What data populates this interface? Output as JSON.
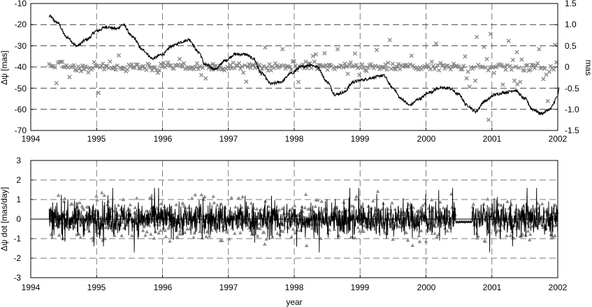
{
  "chart_data": [
    {
      "type": "line",
      "ylabel": "Δψ [mas]",
      "ylabel_right": "mas",
      "xlabel": "",
      "xlim": [
        1994,
        2002
      ],
      "ylim": [
        -70,
        -10
      ],
      "ylim_right": [
        -1.5,
        1.5
      ],
      "x_ticks": [
        "1994",
        "1995",
        "1996",
        "1997",
        "1998",
        "1999",
        "2000",
        "2001",
        "2002"
      ],
      "y_ticks": [
        "-10",
        "-20",
        "-30",
        "-40",
        "-50",
        "-60",
        "-70"
      ],
      "y_ticks_right": [
        "1.5",
        "1.0",
        "0.5",
        "0",
        "-0.5",
        "-1.0",
        "-1.5"
      ],
      "grid": "dashed",
      "series": [
        {
          "axis": "left",
          "style": "black-line",
          "color": "#000000",
          "points": [
            [
              1994.28,
              -16
            ],
            [
              1994.4,
              -19
            ],
            [
              1994.55,
              -26
            ],
            [
              1994.7,
              -30
            ],
            [
              1994.85,
              -27
            ],
            [
              1995.0,
              -23
            ],
            [
              1995.15,
              -21
            ],
            [
              1995.3,
              -22
            ],
            [
              1995.4,
              -20
            ],
            [
              1995.55,
              -26
            ],
            [
              1995.7,
              -32
            ],
            [
              1995.85,
              -36
            ],
            [
              1996.0,
              -34
            ],
            [
              1996.15,
              -30
            ],
            [
              1996.3,
              -28
            ],
            [
              1996.4,
              -27
            ],
            [
              1996.55,
              -33
            ],
            [
              1996.65,
              -39
            ],
            [
              1996.8,
              -41
            ],
            [
              1996.95,
              -37
            ],
            [
              1997.1,
              -34
            ],
            [
              1997.25,
              -34
            ],
            [
              1997.38,
              -36
            ],
            [
              1997.5,
              -43
            ],
            [
              1997.65,
              -48
            ],
            [
              1997.8,
              -47
            ],
            [
              1997.95,
              -43
            ],
            [
              1998.1,
              -40
            ],
            [
              1998.25,
              -39
            ],
            [
              1998.35,
              -40
            ],
            [
              1998.5,
              -47
            ],
            [
              1998.62,
              -53
            ],
            [
              1998.75,
              -52
            ],
            [
              1998.9,
              -47
            ],
            [
              1999.05,
              -46
            ],
            [
              1999.2,
              -45
            ],
            [
              1999.35,
              -44
            ],
            [
              1999.5,
              -50
            ],
            [
              1999.62,
              -55
            ],
            [
              1999.75,
              -58
            ],
            [
              1999.9,
              -55
            ],
            [
              2000.05,
              -52
            ],
            [
              2000.2,
              -50
            ],
            [
              2000.35,
              -50
            ],
            [
              2000.5,
              -53
            ],
            [
              2000.62,
              -58
            ],
            [
              2000.75,
              -61
            ],
            [
              2000.9,
              -56
            ],
            [
              2001.05,
              -53
            ],
            [
              2001.2,
              -52
            ],
            [
              2001.35,
              -51
            ],
            [
              2001.5,
              -55
            ],
            [
              2001.62,
              -60
            ],
            [
              2001.75,
              -62
            ],
            [
              2001.88,
              -60
            ],
            [
              2002.0,
              -54
            ],
            [
              2002.02,
              -50
            ]
          ]
        },
        {
          "axis": "right",
          "style": "grey-x",
          "color": "#888888",
          "note": "residual scatter around 0 mas, amplitude about ±0.1 mas with outliers to about ±0.8 mas"
        }
      ]
    },
    {
      "type": "line",
      "ylabel": "Δψ dot [mas/day]",
      "xlabel": "year",
      "xlim": [
        1994,
        2002
      ],
      "ylim": [
        -3,
        3
      ],
      "x_ticks": [
        "1994",
        "1995",
        "1996",
        "1997",
        "1998",
        "1999",
        "2000",
        "2001",
        "2002"
      ],
      "y_ticks": [
        "3",
        "2",
        "1",
        "0",
        "-1",
        "-2",
        "-3"
      ],
      "grid": "dashed",
      "series": [
        {
          "style": "black-line",
          "color": "#000000",
          "note": "rapid oscillation around 0, amplitude about ±1 mas/day, near-flat gap 2000.45–2000.7"
        },
        {
          "style": "grey-triangle",
          "color": "#888888",
          "note": "scatter around 0, amplitude about ±1.8 mas/day"
        }
      ]
    }
  ]
}
